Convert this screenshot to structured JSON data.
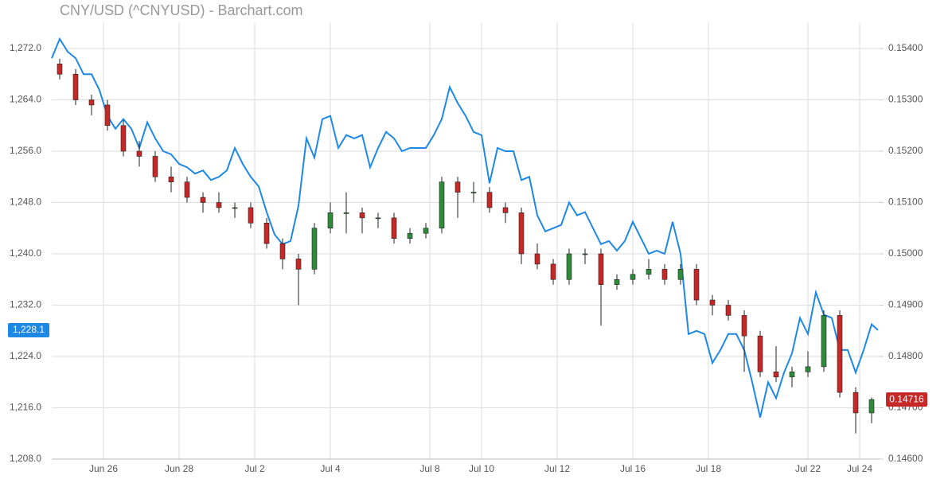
{
  "chart_data": {
    "type": "combo",
    "title": "CNY/USD (^CNYUSD) - Barchart.com",
    "xlim": [
      0,
      104
    ],
    "xticks": [
      {
        "value": 6.5,
        "label": "Jun 26"
      },
      {
        "value": 16,
        "label": "Jun 28"
      },
      {
        "value": 25.5,
        "label": "Jul 2"
      },
      {
        "value": 35,
        "label": "Jul 4"
      },
      {
        "value": 47.5,
        "label": "Jul 8"
      },
      {
        "value": 54,
        "label": "Jul 10"
      },
      {
        "value": 63.5,
        "label": "Jul 12"
      },
      {
        "value": 73,
        "label": "Jul 16"
      },
      {
        "value": 82.5,
        "label": "Jul 18"
      },
      {
        "value": 95,
        "label": "Jul 22"
      },
      {
        "value": 101.5,
        "label": "Jul 24"
      }
    ],
    "ylim": [
      1208,
      1276
    ],
    "yticks": [
      {
        "value": 1208,
        "label": "1,208.0"
      },
      {
        "value": 1216,
        "label": "1,216.0"
      },
      {
        "value": 1224,
        "label": "1,224.0"
      },
      {
        "value": 1232,
        "label": "1,232.0"
      },
      {
        "value": 1240,
        "label": "1,240.0"
      },
      {
        "value": 1248,
        "label": "1,248.0"
      },
      {
        "value": 1256,
        "label": "1,256.0"
      },
      {
        "value": 1264,
        "label": "1,264.0"
      },
      {
        "value": 1272,
        "label": "1,272.0"
      }
    ],
    "y2lim": [
      0.146,
      0.1545
    ],
    "y2ticks": [
      {
        "value": 0.146,
        "label": "0.14600"
      },
      {
        "value": 0.147,
        "label": "0.14700"
      },
      {
        "value": 0.148,
        "label": "0.14800"
      },
      {
        "value": 0.149,
        "label": "0.14900"
      },
      {
        "value": 0.15,
        "label": "0.15000"
      },
      {
        "value": 0.151,
        "label": "0.15100"
      },
      {
        "value": 0.152,
        "label": "0.15200"
      },
      {
        "value": 0.153,
        "label": "0.15300"
      },
      {
        "value": 0.154,
        "label": "0.15400"
      }
    ],
    "grid": true,
    "series": [
      {
        "type": "line",
        "color": "#1e88e5",
        "x": [
          0,
          1,
          2,
          3,
          4,
          5,
          6,
          7,
          8,
          9,
          10,
          11,
          12,
          13,
          14,
          15,
          16,
          17,
          18,
          19,
          20,
          21,
          22,
          23,
          24,
          25,
          26,
          27,
          28,
          29,
          30,
          31,
          32,
          33,
          34,
          35,
          36,
          37,
          38,
          39,
          40,
          41,
          42,
          43,
          44,
          45,
          46,
          47,
          48,
          49,
          50,
          51,
          52,
          53,
          54,
          55,
          56,
          57,
          58,
          59,
          60,
          61,
          62,
          63,
          64,
          65,
          66,
          67,
          68,
          69,
          70,
          71,
          72,
          73,
          74,
          75,
          76,
          77,
          78,
          79,
          80,
          81,
          82,
          83,
          84,
          85,
          86,
          87,
          88,
          89,
          90,
          91,
          92,
          93,
          94,
          95,
          96,
          97,
          98,
          99,
          100,
          101,
          102,
          103,
          103.8
        ],
        "values": [
          1270.5,
          1273.5,
          1271.5,
          1270.5,
          1268,
          1268,
          1265.5,
          1261.5,
          1259.5,
          1261,
          1259.5,
          1256.5,
          1260.5,
          1258,
          1256,
          1255.5,
          1254,
          1253.5,
          1252.5,
          1253,
          1251.5,
          1252,
          1253,
          1256.5,
          1254,
          1252,
          1250.5,
          1246.5,
          1243,
          1241.5,
          1242,
          1247.5,
          1258,
          1255,
          1261,
          1261.5,
          1256.5,
          1258.5,
          1258,
          1258.5,
          1253.5,
          1256.5,
          1259,
          1258,
          1256,
          1256.5,
          1256.5,
          1256.5,
          1258.5,
          1261,
          1266,
          1263.5,
          1261.5,
          1259,
          1258.5,
          1251,
          1256.5,
          1256,
          1256,
          1251.5,
          1252,
          1246,
          1243.5,
          1244,
          1244.5,
          1248,
          1246,
          1246.5,
          1244,
          1241.5,
          1242,
          1240.5,
          1242,
          1245,
          1242.5,
          1240,
          1240.5,
          1240,
          1245,
          1240,
          1227.5,
          1228,
          1227.5,
          1223,
          1225,
          1227.5,
          1227.5,
          1225,
          1220,
          1214.5,
          1220,
          1217.5,
          1221.5,
          1224.5,
          1230,
          1227.5,
          1234,
          1230.5,
          1230,
          1225,
          1225,
          1221.5,
          1225,
          1229,
          1228.1
        ],
        "last_label": {
          "value": 1228.1,
          "label": "1,228.1"
        }
      },
      {
        "type": "candlestick",
        "axis": "y2",
        "up_color": "#2e8b3a",
        "down_color": "#c62828",
        "x": [
          1,
          3,
          5,
          7,
          9,
          11,
          13,
          15,
          17,
          19,
          21,
          23,
          25,
          27,
          29,
          31,
          33,
          35,
          37,
          39,
          41,
          43,
          45,
          47,
          49,
          51,
          53,
          55,
          57,
          59,
          61,
          63,
          65,
          67,
          69,
          71,
          73,
          75,
          77,
          79,
          81,
          83,
          85,
          87,
          89,
          91,
          93,
          95,
          97,
          99,
          101,
          103
        ],
        "open": [
          0.1537,
          0.1535,
          0.153,
          0.1529,
          0.1525,
          0.152,
          0.1519,
          0.1515,
          0.1514,
          0.1511,
          0.151,
          0.1509,
          0.1509,
          0.1506,
          0.1502,
          0.1499,
          0.1497,
          0.1505,
          0.1508,
          0.1508,
          0.1507,
          0.1507,
          0.1503,
          0.1504,
          0.1505,
          0.1514,
          0.1512,
          0.1512,
          0.1509,
          0.1508,
          0.15,
          0.1498,
          0.1495,
          0.15,
          0.15,
          0.1494,
          0.1495,
          0.1496,
          0.1497,
          0.1495,
          0.1497,
          0.1491,
          0.149,
          0.1488,
          0.1484,
          0.1477,
          0.1476,
          0.1477,
          0.1478,
          0.1488,
          0.1473,
          0.1469
        ],
        "high": [
          0.1538,
          0.1536,
          0.1531,
          0.153,
          0.1526,
          0.1522,
          0.152,
          0.1517,
          0.1515,
          0.1512,
          0.1512,
          0.151,
          0.151,
          0.1507,
          0.1503,
          0.15,
          0.1506,
          0.151,
          0.1512,
          0.1509,
          0.1508,
          0.1508,
          0.1505,
          0.1506,
          0.1515,
          0.1515,
          0.1514,
          0.1513,
          0.151,
          0.1509,
          0.1502,
          0.1499,
          0.1501,
          0.1501,
          0.1501,
          0.1496,
          0.1497,
          0.1499,
          0.1498,
          0.1498,
          0.1498,
          0.1492,
          0.1491,
          0.1489,
          0.1485,
          0.1482,
          0.1478,
          0.1481,
          0.1489,
          0.1489,
          0.1474,
          0.1472
        ],
        "low": [
          0.1534,
          0.1529,
          0.1527,
          0.1524,
          0.1519,
          0.1517,
          0.1514,
          0.1512,
          0.151,
          0.1508,
          0.1508,
          0.1507,
          0.1505,
          0.1501,
          0.1497,
          0.149,
          0.1496,
          0.1504,
          0.1504,
          0.1504,
          0.1505,
          0.1502,
          0.1502,
          0.1503,
          0.1504,
          0.1507,
          0.151,
          0.1508,
          0.1506,
          0.1498,
          0.1497,
          0.1494,
          0.1494,
          0.1498,
          0.1486,
          0.1493,
          0.1494,
          0.1495,
          0.1494,
          0.1494,
          0.149,
          0.1488,
          0.1487,
          0.1477,
          0.1476,
          0.1475,
          0.1474,
          0.1476,
          0.1477,
          0.1472,
          0.1465,
          0.1467
        ],
        "close": [
          0.1535,
          0.153,
          0.1529,
          0.1525,
          0.152,
          0.1519,
          0.1515,
          0.1514,
          0.1511,
          0.151,
          0.1509,
          0.1509,
          0.1506,
          0.1502,
          0.1499,
          0.1497,
          0.1505,
          0.1508,
          0.1508,
          0.1507,
          0.1507,
          0.1503,
          0.1504,
          0.1505,
          0.1514,
          0.1512,
          0.1512,
          0.1509,
          0.1508,
          0.15,
          0.1498,
          0.1495,
          0.15,
          0.15,
          0.1494,
          0.1495,
          0.1496,
          0.1497,
          0.1495,
          0.1497,
          0.1491,
          0.149,
          0.1488,
          0.1484,
          0.1477,
          0.1476,
          0.1477,
          0.1478,
          0.1488,
          0.1473,
          0.1469,
          0.14716
        ],
        "last_label": {
          "value": 0.14716,
          "label": "0.14716"
        }
      }
    ]
  }
}
